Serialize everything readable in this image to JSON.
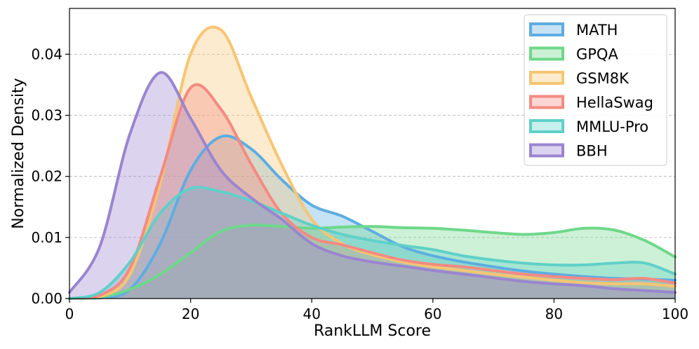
{
  "chart_data": {
    "type": "area",
    "title": "",
    "xlabel": "RankLLM Score",
    "ylabel": "Normalized Density",
    "xlim": [
      0,
      100
    ],
    "ylim": [
      0,
      0.0475
    ],
    "xticks": [
      0,
      20,
      40,
      60,
      80,
      100
    ],
    "xtick_labels": [
      "0",
      "20",
      "40",
      "60",
      "80",
      "100"
    ],
    "yticks": [
      0.0,
      0.01,
      0.02,
      0.03,
      0.04
    ],
    "ytick_labels": [
      "0.00",
      "0.01",
      "0.02",
      "0.03",
      "0.04"
    ],
    "grid": "horizontal-dashed",
    "legend_position": "top-right",
    "x": [
      0,
      5,
      10,
      15,
      20,
      25,
      30,
      35,
      40,
      45,
      50,
      55,
      60,
      65,
      70,
      75,
      80,
      85,
      90,
      95,
      100
    ],
    "series": [
      {
        "name": "MATH",
        "color": "#5dade2",
        "values": [
          0.0,
          0.0001,
          0.0015,
          0.009,
          0.021,
          0.0265,
          0.0245,
          0.0195,
          0.0153,
          0.0135,
          0.011,
          0.0085,
          0.007,
          0.006,
          0.0052,
          0.0045,
          0.004,
          0.0036,
          0.0033,
          0.0032,
          0.003
        ]
      },
      {
        "name": "GPQA",
        "color": "#6ed88a",
        "values": [
          0.0,
          0.0002,
          0.0015,
          0.004,
          0.0075,
          0.011,
          0.012,
          0.0118,
          0.0115,
          0.0117,
          0.0118,
          0.0116,
          0.0115,
          0.0112,
          0.0108,
          0.0105,
          0.0108,
          0.0115,
          0.0112,
          0.0095,
          0.0068
        ]
      },
      {
        "name": "GSM8K",
        "color": "#f7c572",
        "values": [
          0.0,
          0.0003,
          0.004,
          0.019,
          0.04,
          0.044,
          0.033,
          0.022,
          0.013,
          0.009,
          0.0072,
          0.006,
          0.0052,
          0.0046,
          0.004,
          0.0035,
          0.003,
          0.0026,
          0.0024,
          0.0024,
          0.002
        ]
      },
      {
        "name": "HellaSwag",
        "color": "#f48a82",
        "values": [
          0.0,
          0.0005,
          0.005,
          0.02,
          0.0345,
          0.031,
          0.022,
          0.014,
          0.01,
          0.0088,
          0.0075,
          0.0063,
          0.0056,
          0.0052,
          0.0046,
          0.004,
          0.0036,
          0.0033,
          0.0031,
          0.0033,
          0.0025
        ]
      },
      {
        "name": "MMLU-Pro",
        "color": "#5fd0c8",
        "values": [
          0.0,
          0.001,
          0.006,
          0.014,
          0.018,
          0.0175,
          0.016,
          0.014,
          0.012,
          0.0105,
          0.0095,
          0.0087,
          0.008,
          0.007,
          0.0063,
          0.0058,
          0.0055,
          0.0055,
          0.0058,
          0.0058,
          0.004
        ]
      },
      {
        "name": "BBH",
        "color": "#9a85d0",
        "values": [
          0.001,
          0.0085,
          0.027,
          0.037,
          0.0295,
          0.021,
          0.0165,
          0.013,
          0.009,
          0.007,
          0.006,
          0.0053,
          0.0046,
          0.004,
          0.0034,
          0.0028,
          0.0024,
          0.0021,
          0.0016,
          0.0013,
          0.001
        ]
      }
    ]
  }
}
